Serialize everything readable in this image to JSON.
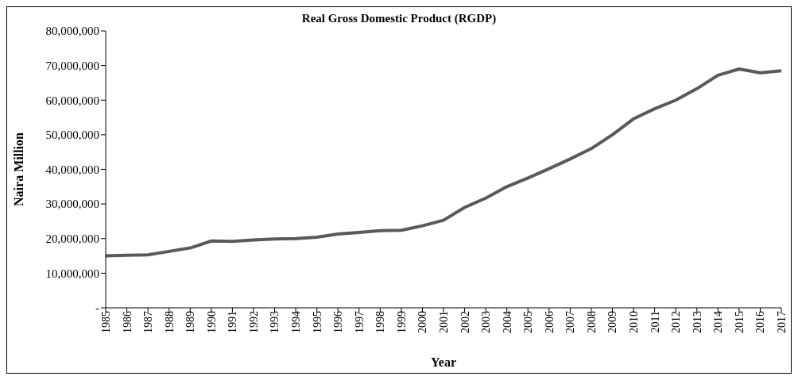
{
  "chart_data": {
    "type": "line",
    "title": "Real Gross Domestic Product (RGDP)",
    "xlabel": "Year",
    "ylabel": "Naira Million",
    "categories": [
      "1985",
      "1986",
      "1987",
      "1988",
      "1989",
      "1990",
      "1991",
      "1992",
      "1993",
      "1994",
      "1995",
      "1996",
      "1997",
      "1998",
      "1999",
      "2000",
      "2001",
      "2002",
      "2003",
      "2004",
      "2005",
      "2006",
      "2007",
      "2008",
      "2009",
      "2010",
      "2011",
      "2012",
      "2013",
      "2014",
      "2015",
      "2016",
      "2017"
    ],
    "series": [
      {
        "color": "#595959",
        "values": [
          15000000,
          15200000,
          15300000,
          16300000,
          17300000,
          19300000,
          19200000,
          19600000,
          19900000,
          20000000,
          20400000,
          21300000,
          21800000,
          22300000,
          22400000,
          23700000,
          25300000,
          29000000,
          31700000,
          35000000,
          37500000,
          40200000,
          43000000,
          46000000,
          50000000,
          54600000,
          57500000,
          60000000,
          63300000,
          67200000,
          69000000,
          67900000,
          68500000
        ]
      }
    ],
    "ylim": [
      0,
      80000000
    ],
    "yticks": [
      {
        "value": 0,
        "label": "-"
      },
      {
        "value": 10000000,
        "label": "10,000,000"
      },
      {
        "value": 20000000,
        "label": "20,000,000"
      },
      {
        "value": 30000000,
        "label": "30,000,000"
      },
      {
        "value": 40000000,
        "label": "40,000,000"
      },
      {
        "value": 50000000,
        "label": "50,000,000"
      },
      {
        "value": 60000000,
        "label": "60,000,000"
      },
      {
        "value": 70000000,
        "label": "70,000,000"
      },
      {
        "value": 80000000,
        "label": "80,000,000"
      }
    ],
    "grid": false,
    "legend": false,
    "marker": "none",
    "line_style": "solid"
  }
}
